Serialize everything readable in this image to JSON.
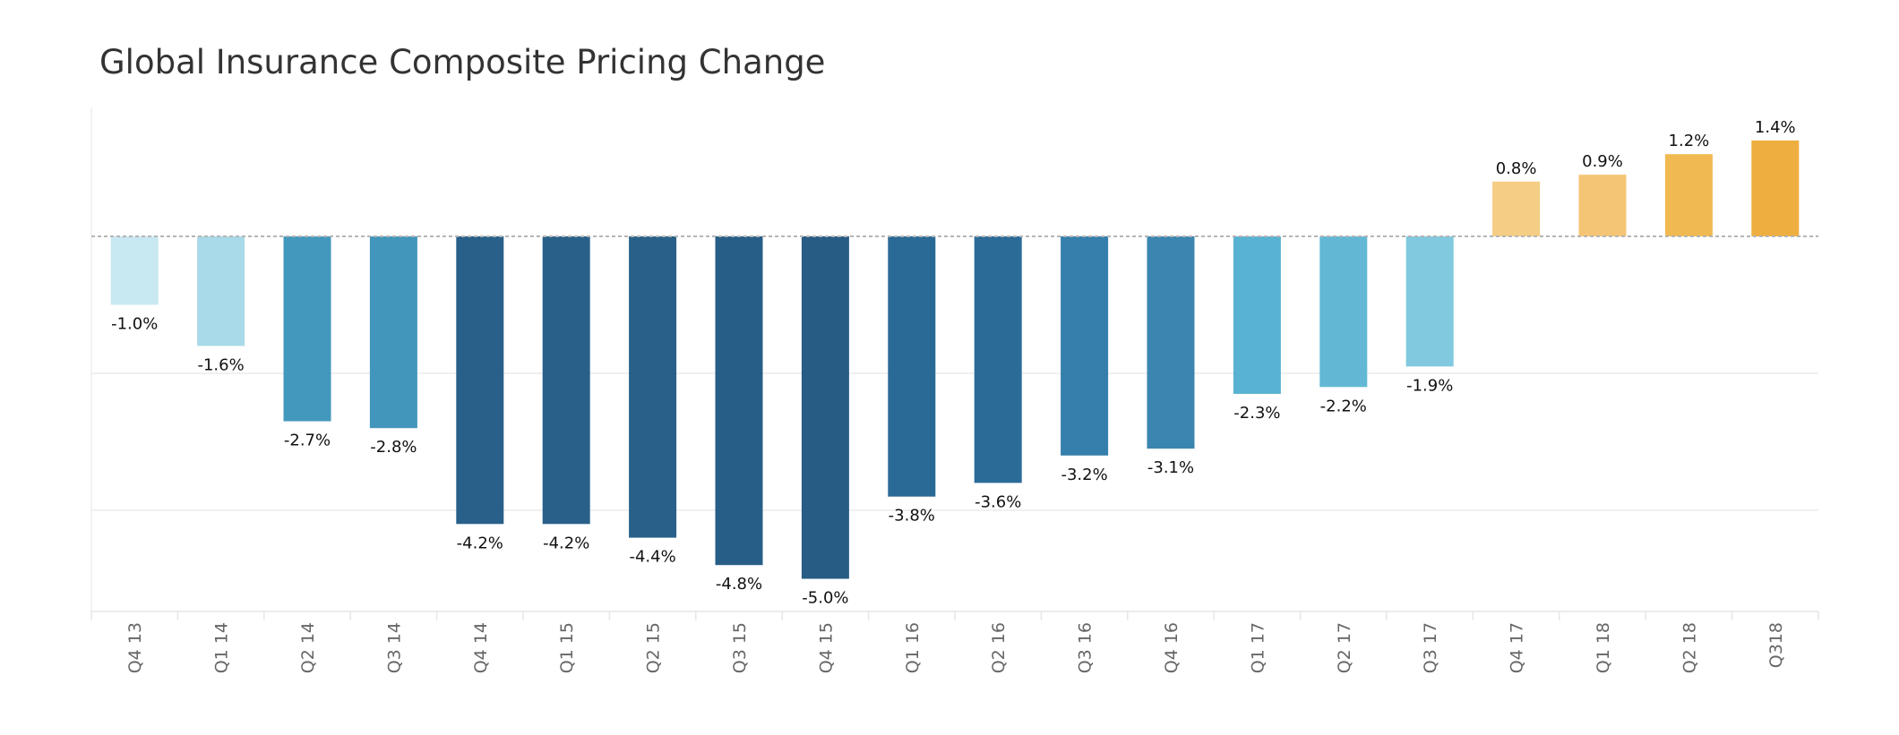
{
  "chart_data": {
    "type": "bar",
    "title": "Global Insurance Composite Pricing Change",
    "xlabel": "",
    "ylabel": "",
    "categories": [
      "Q4 13",
      "Q1 14",
      "Q2 14",
      "Q3 14",
      "Q4 14",
      "Q1 15",
      "Q2 15",
      "Q3 15",
      "Q4 15",
      "Q1 16",
      "Q2 16",
      "Q3 16",
      "Q4 16",
      "Q1 17",
      "Q2 17",
      "Q3 17",
      "Q4 17",
      "Q1 18",
      "Q2 18",
      "Q318"
    ],
    "values": [
      -1.0,
      -1.6,
      -2.7,
      -2.8,
      -4.2,
      -4.2,
      -4.4,
      -4.8,
      -5.0,
      -3.8,
      -3.6,
      -3.2,
      -3.1,
      -2.3,
      -2.2,
      -1.9,
      0.8,
      0.9,
      1.2,
      1.4
    ],
    "data_labels": [
      "-1.0%",
      "-1.6%",
      "-2.7%",
      "-2.8%",
      "-4.2%",
      "-4.2%",
      "-4.4%",
      "-4.8%",
      "-5.0%",
      "-3.8%",
      "-3.6%",
      "-3.2%",
      "-3.1%",
      "-2.3%",
      "-2.2%",
      "-1.9%",
      "0.8%",
      "0.9%",
      "1.2%",
      "1.4%"
    ],
    "colors": [
      "#c8e8f2",
      "#a8dae9",
      "#4398bd",
      "#4396bb",
      "#28608a",
      "#28608a",
      "#28608a",
      "#275e87",
      "#275c84",
      "#2a6a96",
      "#2b6b98",
      "#357fac",
      "#3b86b0",
      "#58b2d1",
      "#62b8d4",
      "#80c9df",
      "#f6cd84",
      "#f4c574",
      "#f1b952",
      "#efae40"
    ],
    "ylim": [
      -5.5,
      1.9
    ],
    "zero_line": true,
    "gridlines": [
      -2,
      -4
    ],
    "legend": "none",
    "grid": true
  }
}
